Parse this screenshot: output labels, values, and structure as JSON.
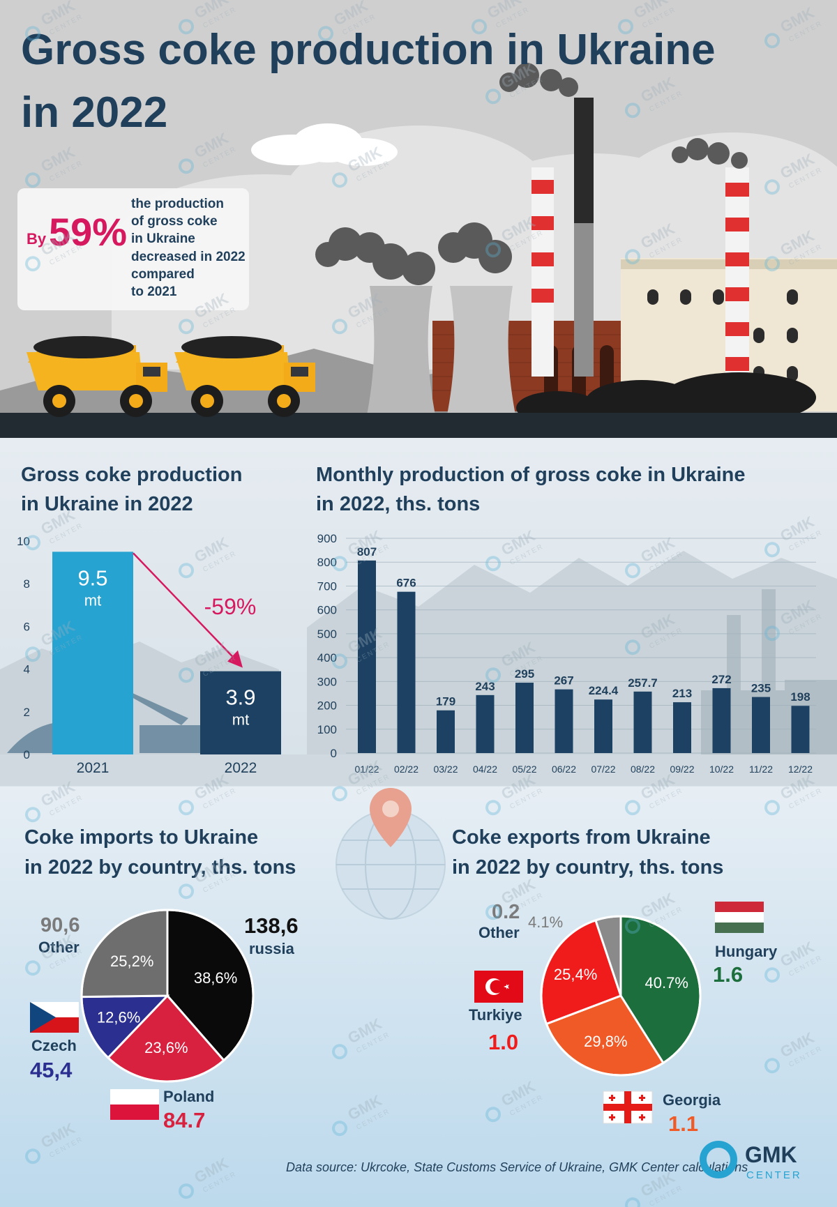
{
  "header": {
    "title_line1": "Gross coke production in Ukraine",
    "title_line2": "in 2022",
    "callout": {
      "prefix": "By",
      "value": "59%",
      "text_lines": [
        "the production",
        "of gross coke",
        "in Ukraine",
        "decreased in 2022",
        "compared",
        "to 2021"
      ]
    }
  },
  "colors": {
    "title": "#1f3f5b",
    "accent_pink": "#d6195f",
    "bar_2021": "#27a3d1",
    "bar_2022": "#1c4163",
    "monthly_bar": "#1c4163",
    "russia": "#0a0a0a",
    "poland": "#d8203f",
    "czech": "#2b2f8f",
    "other_import": "#6e6e6e",
    "hungary": "#1c6e3c",
    "georgia": "#ef5a26",
    "turkiye": "#f01c1c",
    "other_export": "#8a8a8a"
  },
  "watermark": {
    "text1": "GMK",
    "text2": "CENTER"
  },
  "annual": {
    "title_line1": "Gross coke production",
    "title_line2": "in Ukraine in 2022",
    "change_label": "-59%",
    "unit": "mt",
    "bar_labels": [
      "9.5",
      "3.9"
    ]
  },
  "monthly": {
    "title_line1": "Monthly production of gross coke in Ukraine",
    "title_line2": "in 2022, ths. tons",
    "value_labels": [
      "807",
      "676",
      "179",
      "243",
      "295",
      "267",
      "224.4",
      "257.7",
      "213",
      "272",
      "235",
      "198"
    ]
  },
  "imports": {
    "title_line1": "Coke imports to Ukraine",
    "title_line2": "in 2022 by country, ths. tons",
    "countries": [
      {
        "name": "russia",
        "value": "138,6",
        "pct": "38,6%"
      },
      {
        "name": "Poland",
        "value": "84.7",
        "pct": "23,6%"
      },
      {
        "name": "Czech",
        "value": "45,4",
        "pct": "12,6%"
      },
      {
        "name": "Other",
        "value": "90,6",
        "pct": "25,2%"
      }
    ]
  },
  "exports": {
    "title_line1": "Coke exports from Ukraine",
    "title_line2": "in 2022 by country, ths. tons",
    "countries": [
      {
        "name": "Hungary",
        "value": "1.6",
        "pct": "40.7%"
      },
      {
        "name": "Georgia",
        "value": "1.1",
        "pct": "29,8%"
      },
      {
        "name": "Turkiye",
        "value": "1.0",
        "pct": "25,4%"
      },
      {
        "name": "Other",
        "value": "0.2",
        "pct": "4.1%"
      }
    ]
  },
  "footer": {
    "source": "Data source: Ukrcoke, State Customs Service of Ukraine, GMK Center calculations",
    "logo_line1": "GMK",
    "logo_line2": "CENTER"
  },
  "chart_data": [
    {
      "type": "bar",
      "title": "Gross coke production in Ukraine in 2022",
      "categories": [
        "2021",
        "2022"
      ],
      "values": [
        9.5,
        3.9
      ],
      "unit": "mt",
      "ylim": [
        0,
        10
      ],
      "yticks": [
        "0",
        "2",
        "4",
        "6",
        "8",
        "10"
      ],
      "annotation": "-59%"
    },
    {
      "type": "bar",
      "title": "Monthly production of gross coke in Ukraine in 2022, ths. tons",
      "categories": [
        "01/22",
        "02/22",
        "03/22",
        "04/22",
        "05/22",
        "06/22",
        "07/22",
        "08/22",
        "09/22",
        "10/22",
        "11/22",
        "12/22"
      ],
      "values": [
        807,
        676,
        179,
        243,
        295,
        267,
        224.4,
        257.7,
        213,
        272,
        235,
        198
      ],
      "ylim": [
        0,
        900
      ],
      "yticks": [
        "0",
        "100",
        "200",
        "300",
        "400",
        "500",
        "600",
        "700",
        "800",
        "900"
      ],
      "grid": true
    },
    {
      "type": "pie",
      "title": "Coke imports to Ukraine in 2022 by country, ths. tons",
      "labels": [
        "russia",
        "Poland",
        "Czech",
        "Other"
      ],
      "values": [
        138.6,
        84.7,
        45.4,
        90.6
      ],
      "percentages": [
        38.6,
        23.6,
        12.6,
        25.2
      ]
    },
    {
      "type": "pie",
      "title": "Coke exports from Ukraine in 2022 by country, ths. tons",
      "labels": [
        "Hungary",
        "Georgia",
        "Turkiye",
        "Other"
      ],
      "values": [
        1.6,
        1.1,
        1.0,
        0.2
      ],
      "percentages": [
        40.7,
        29.8,
        25.4,
        4.1
      ]
    }
  ]
}
